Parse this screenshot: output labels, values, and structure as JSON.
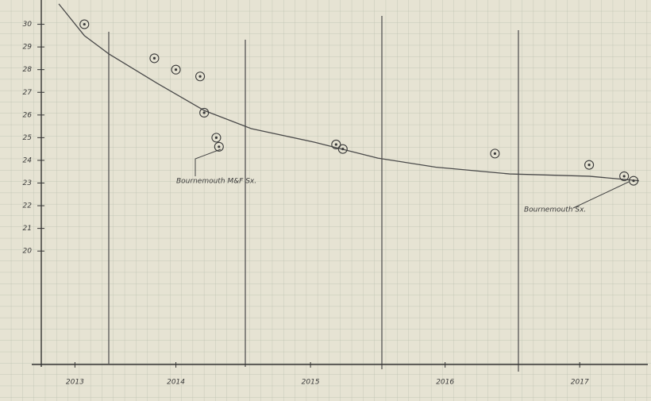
{
  "chart_data": {
    "type": "scatter",
    "x": [
      2013.82,
      2014.34,
      2014.5,
      2014.68,
      2014.71,
      2014.8,
      2014.82,
      2015.69,
      2015.74,
      2016.87,
      2017.57,
      2017.83,
      2017.9
    ],
    "values": [
      30.0,
      28.5,
      28.0,
      27.7,
      26.1,
      25.0,
      24.6,
      24.7,
      24.5,
      24.3,
      23.8,
      23.3,
      23.1
    ],
    "color": "#3a3a3a",
    "trend": {
      "x": [
        2013.63,
        2013.82,
        2014.0,
        2014.36,
        2014.71,
        2015.06,
        2015.53,
        2016.0,
        2016.43,
        2016.98,
        2017.57,
        2017.94
      ],
      "values": [
        30.9,
        29.5,
        28.7,
        27.4,
        26.2,
        25.4,
        24.8,
        24.1,
        23.7,
        23.4,
        23.3,
        23.1
      ],
      "color": "#4a4a4a"
    },
    "annotations": [
      "Bournemouth M&F Sx.",
      "Bournemouth Sx."
    ],
    "xlim": [
      2013.5,
      2018.0
    ],
    "xticks": [
      {
        "value": 2013.75,
        "label": "2013"
      },
      {
        "value": 2014.5,
        "label": "2014"
      },
      {
        "value": 2015.5,
        "label": "2015"
      },
      {
        "value": 2016.5,
        "label": "2016"
      },
      {
        "value": 2017.5,
        "label": "2017"
      }
    ],
    "ylim": [
      15,
      31
    ],
    "yticks": [
      20,
      21,
      22,
      23,
      24,
      25,
      26,
      27,
      28,
      29,
      30
    ]
  }
}
